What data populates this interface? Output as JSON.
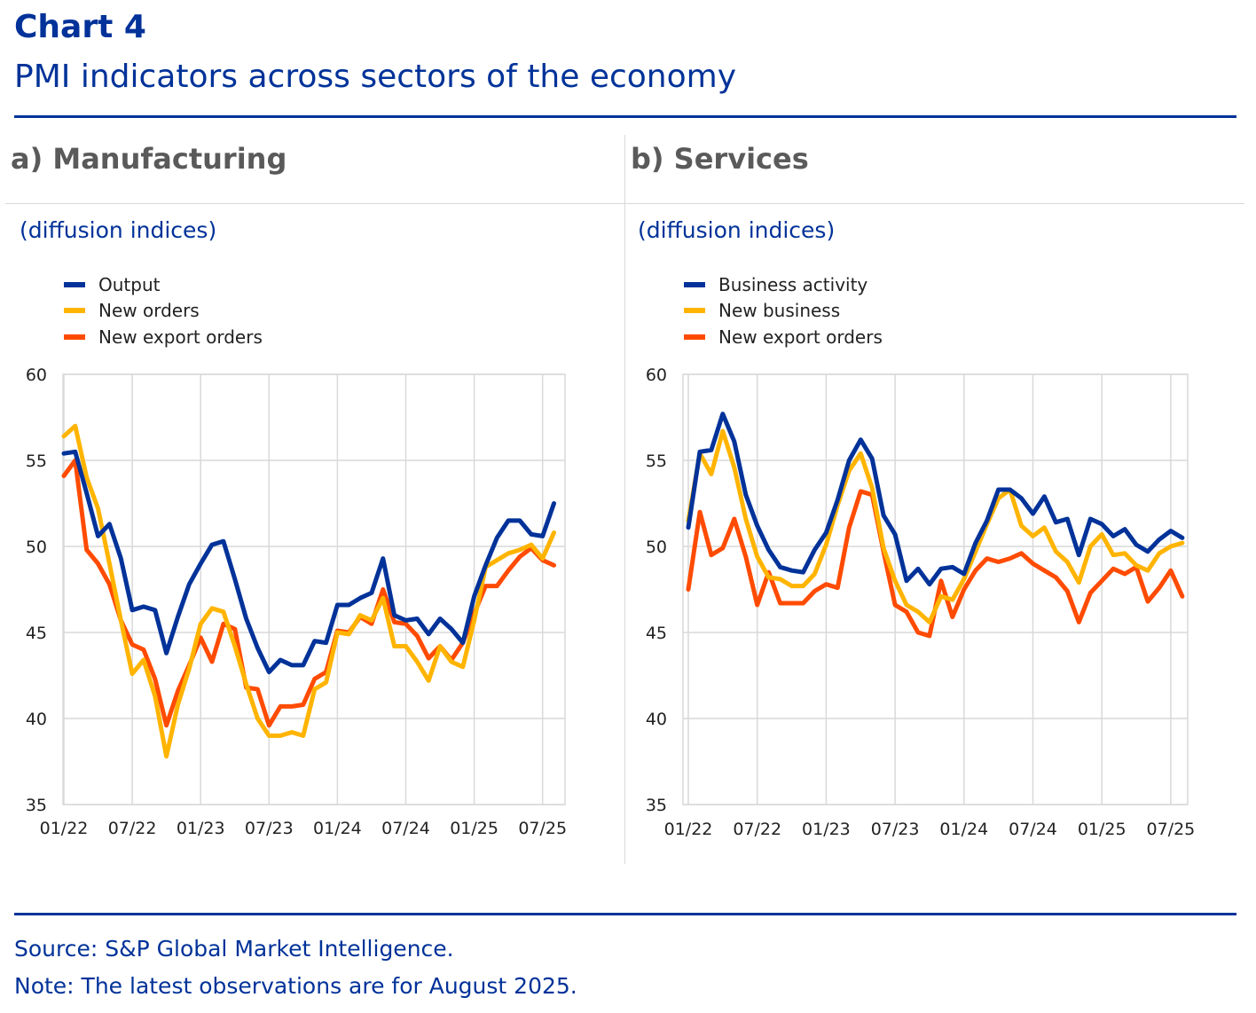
{
  "header": {
    "label": "Chart 4",
    "title": "PMI indicators across sectors of the economy"
  },
  "panels": [
    {
      "title": "a) Manufacturing",
      "units": "(diffusion indices)"
    },
    {
      "title": "b) Services",
      "units": "(diffusion indices)"
    }
  ],
  "footer": {
    "source": "Source: S&P Global Market Intelligence.",
    "note": "Note: The latest observations are for August 2025."
  },
  "colors": {
    "blue": "#003299",
    "yellow": "#ffb400",
    "orange": "#ff4b00",
    "grid": "#d9d9d9"
  },
  "chart_data": [
    {
      "type": "line",
      "title": "a) Manufacturing",
      "ylabel": "(diffusion indices)",
      "ylim": [
        35,
        60
      ],
      "yticks": [
        60,
        55,
        50,
        45,
        40,
        35
      ],
      "x_tick_labels": [
        "01/22",
        "07/22",
        "01/23",
        "07/23",
        "01/24",
        "07/24",
        "01/25",
        "07/25"
      ],
      "legend_position": "top-left",
      "grid": true,
      "series": [
        {
          "name": "Output",
          "color": "#003299",
          "values": [
            55.4,
            55.5,
            53.1,
            50.6,
            51.3,
            49.3,
            46.3,
            46.5,
            46.3,
            43.8,
            45.9,
            47.8,
            49.0,
            50.1,
            50.3,
            48.1,
            45.8,
            44.1,
            42.7,
            43.4,
            43.1,
            43.1,
            44.5,
            44.4,
            46.6,
            46.6,
            47.0,
            47.3,
            49.3,
            46.0,
            45.7,
            45.8,
            44.9,
            45.8,
            45.2,
            44.4,
            47.1,
            48.9,
            50.5,
            51.5,
            51.5,
            50.7,
            50.6,
            52.5
          ]
        },
        {
          "name": "New orders",
          "color": "#ffb400",
          "values": [
            56.4,
            57.0,
            54.0,
            52.2,
            49.0,
            45.7,
            42.6,
            43.4,
            41.3,
            37.8,
            40.8,
            42.9,
            45.5,
            46.4,
            46.2,
            44.2,
            42.0,
            40.0,
            39.0,
            39.0,
            39.2,
            39.0,
            41.7,
            42.1,
            45.0,
            44.9,
            46.0,
            45.7,
            47.0,
            44.2,
            44.2,
            43.3,
            42.2,
            44.2,
            43.3,
            43.0,
            45.7,
            48.8,
            49.2,
            49.6,
            49.8,
            50.1,
            49.3,
            50.8
          ]
        },
        {
          "name": "New export orders",
          "color": "#ff4b00",
          "values": [
            54.1,
            55.0,
            49.8,
            49.0,
            47.8,
            45.7,
            44.3,
            44.0,
            42.3,
            39.6,
            41.6,
            43.1,
            44.7,
            43.3,
            45.5,
            45.2,
            41.8,
            41.7,
            39.6,
            40.7,
            40.7,
            40.8,
            42.3,
            42.7,
            45.1,
            45.0,
            45.9,
            45.5,
            47.5,
            45.6,
            45.5,
            44.8,
            43.5,
            44.2,
            43.4,
            44.4,
            46.1,
            47.7,
            47.7,
            48.6,
            49.4,
            49.9,
            49.2,
            48.9
          ]
        }
      ]
    },
    {
      "type": "line",
      "title": "b) Services",
      "ylabel": "(diffusion indices)",
      "ylim": [
        35,
        60
      ],
      "yticks": [
        60,
        55,
        50,
        45,
        40,
        35
      ],
      "x_tick_labels": [
        "01/22",
        "07/22",
        "01/23",
        "07/23",
        "01/24",
        "07/24",
        "01/25",
        "07/25"
      ],
      "legend_position": "top-left",
      "grid": true,
      "series": [
        {
          "name": "Business activity",
          "color": "#003299",
          "values": [
            51.1,
            55.5,
            55.6,
            57.7,
            56.1,
            53.0,
            51.2,
            49.8,
            48.8,
            48.6,
            48.5,
            49.8,
            50.8,
            52.7,
            55.0,
            56.2,
            55.1,
            51.8,
            50.7,
            48.0,
            48.7,
            47.8,
            48.7,
            48.8,
            48.4,
            50.2,
            51.5,
            53.3,
            53.3,
            52.8,
            51.9,
            52.9,
            51.4,
            51.6,
            49.5,
            51.6,
            51.3,
            50.6,
            51.0,
            50.1,
            49.7,
            50.4,
            50.9,
            50.5
          ]
        },
        {
          "name": "New business",
          "color": "#ffb400",
          "values": [
            51.5,
            55.4,
            54.2,
            56.7,
            54.6,
            51.6,
            49.4,
            48.2,
            48.1,
            47.7,
            47.7,
            48.4,
            50.1,
            52.4,
            54.4,
            55.4,
            53.4,
            49.9,
            48.0,
            46.6,
            46.2,
            45.6,
            47.1,
            46.9,
            48.1,
            49.7,
            51.3,
            52.8,
            53.3,
            51.2,
            50.6,
            51.1,
            49.7,
            49.1,
            47.9,
            50.0,
            50.7,
            49.5,
            49.6,
            48.9,
            48.6,
            49.6,
            50.0,
            50.2
          ]
        },
        {
          "name": "New export orders",
          "color": "#ff4b00",
          "values": [
            47.5,
            52.0,
            49.5,
            49.9,
            51.6,
            49.4,
            46.6,
            48.5,
            46.7,
            46.7,
            46.7,
            47.4,
            47.8,
            47.6,
            51.1,
            53.2,
            53.0,
            49.7,
            46.6,
            46.2,
            45.0,
            44.8,
            48.0,
            45.9,
            47.5,
            48.6,
            49.3,
            49.1,
            49.3,
            49.6,
            49.0,
            48.6,
            48.2,
            47.4,
            45.6,
            47.3,
            48.0,
            48.7,
            48.4,
            48.8,
            46.8,
            47.6,
            48.6,
            47.1
          ]
        }
      ]
    }
  ]
}
